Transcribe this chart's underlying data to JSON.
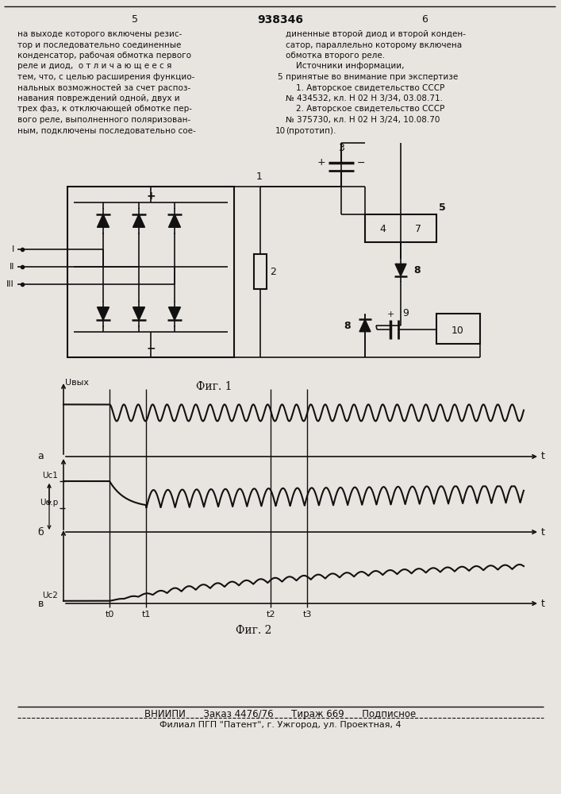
{
  "page_title": "938346",
  "page_num_left": "5",
  "page_num_right": "6",
  "text_left": [
    "на выходе которого включены резис-",
    "тор и последовательно соединенные",
    "конденсатор, рабочая обмотка первого",
    "реле и диод,  о т л и ч а ю щ е е с я",
    "тем, что, с целью расширения функцио-",
    "нальных возможностей за счет распоз-",
    "навания повреждений одной, двух и",
    "трех фаз, к отключающей обмотке пер-",
    "вого реле, выполненного поляризован-",
    "ным, подключены последовательно сое-"
  ],
  "text_right": [
    "диненные второй диод и второй конден-",
    "сатор, параллельно которому включена",
    "обмотка второго реле.",
    "    Источники информации,",
    "принятые во внимание при экспертизе",
    "    1. Авторское свидетельство СССР",
    "№ 434532, кл. Н 02 Н 3/34, 03.08.71.",
    "    2. Авторское свидетельство СССР",
    "№ 375730, кл. Н 02 Н 3/24, 10.08.70",
    "(прототип)."
  ],
  "fig1_label": "Фиг. 1",
  "fig2_label": "Фиг. 2",
  "bottom_line1": "ВНИИПИ      Заказ 4476/76      Тираж 669      Подписное",
  "bottom_line2": "Филиал ПГП \"Патент\", г. Ужгород, ул. Проектная, 4",
  "label_a": "а",
  "label_b": "б",
  "label_v": "в",
  "label_Uvyx": "Uвых",
  "label_Uc1": "Uс1",
  "label_Ucr": "Uс.р",
  "label_Uc2": "Uс2",
  "label_t0": "t0",
  "label_t1": "t1",
  "label_t2": "t2",
  "label_t3": "t3",
  "bg_color": "#e8e5e0",
  "line_color": "#111111",
  "text_color": "#111111"
}
